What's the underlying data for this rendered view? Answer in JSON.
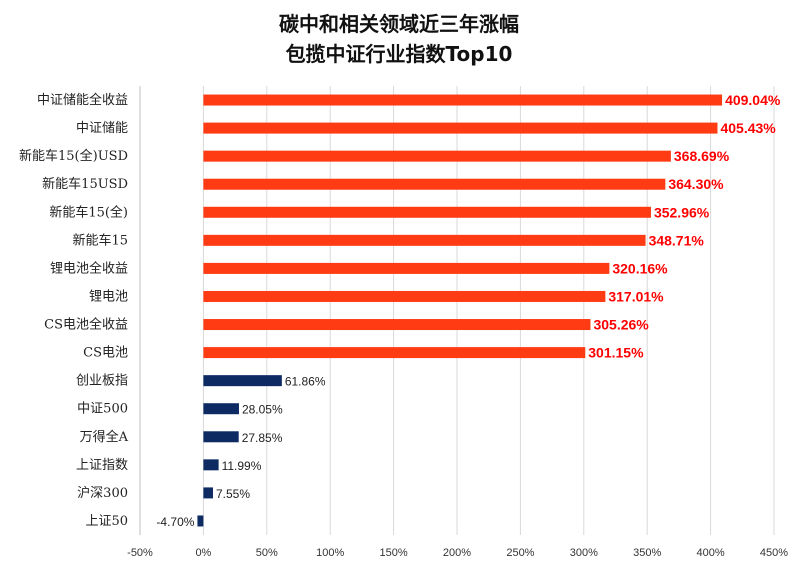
{
  "chart_data": {
    "type": "bar",
    "orientation": "horizontal",
    "title": "碳中和相关领域近三年涨幅",
    "subtitle": "包揽中证行业指数Top10",
    "categories": [
      "中证储能全收益",
      "中证储能",
      "新能车15(全)USD",
      "新能车15USD",
      "新能车15(全)",
      "新能车15",
      "锂电池全收益",
      "锂电池",
      "CS电池全收益",
      "CS电池",
      "创业板指",
      "中证500",
      "万得全A",
      "上证指数",
      "沪深300",
      "上证50"
    ],
    "values": [
      409.04,
      405.43,
      368.69,
      364.3,
      352.96,
      348.71,
      320.16,
      317.01,
      305.26,
      301.15,
      61.86,
      28.05,
      27.85,
      11.99,
      7.55,
      -4.7
    ],
    "value_labels": [
      "409.04%",
      "405.43%",
      "368.69%",
      "364.30%",
      "352.96%",
      "348.71%",
      "320.16%",
      "317.01%",
      "305.26%",
      "301.15%",
      "61.86%",
      "28.05%",
      "27.85%",
      "11.99%",
      "7.55%",
      "-4.70%"
    ],
    "xlim": [
      -50,
      450
    ],
    "xticks": [
      -50,
      0,
      50,
      100,
      150,
      200,
      250,
      300,
      350,
      400,
      450
    ],
    "xtick_labels": [
      "-50%",
      "0%",
      "50%",
      "100%",
      "150%",
      "200%",
      "250%",
      "300%",
      "350%",
      "400%",
      "450%"
    ],
    "highlight_count": 10,
    "colors": {
      "highlight": "#ff3b14",
      "normal": "#0d2a63",
      "highlight_label": "#ff0000",
      "gridline": "#d9d9d9"
    },
    "grid": true,
    "legend": "none"
  }
}
